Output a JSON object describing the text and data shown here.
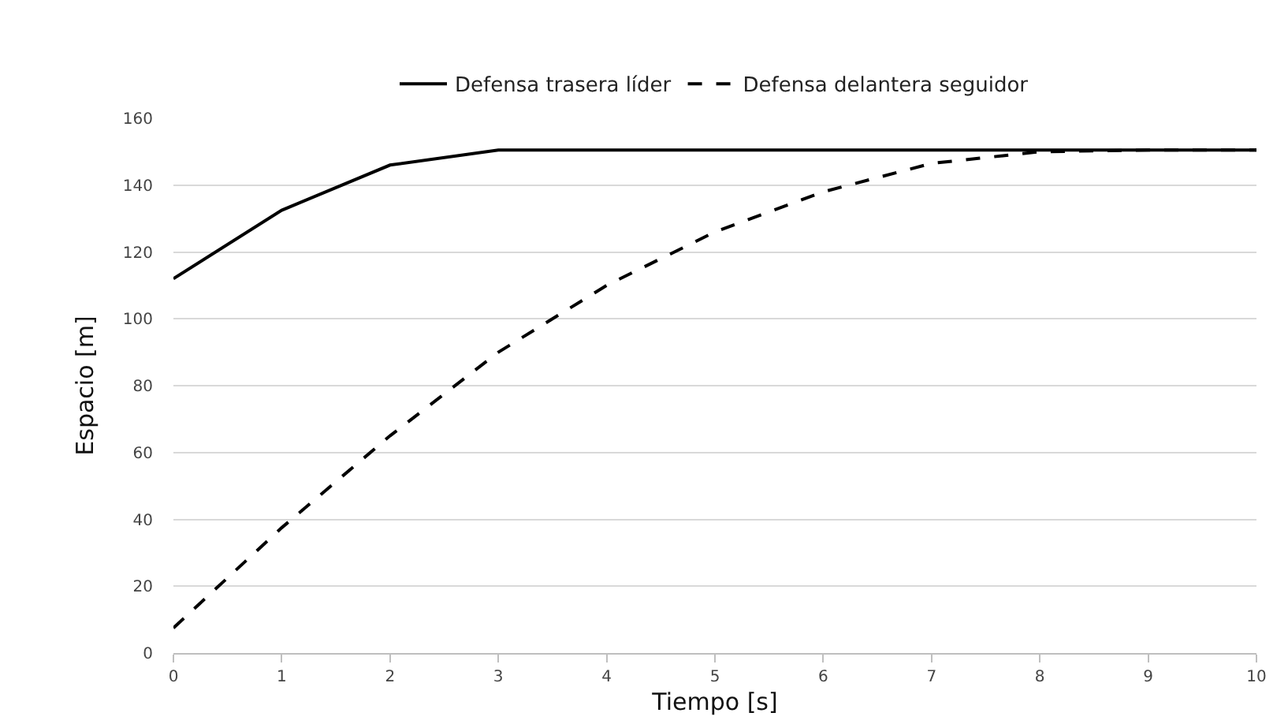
{
  "chart_data": {
    "type": "line",
    "xlabel": "Tiempo [s]",
    "ylabel": "Espacio [m]",
    "categories": [
      "0",
      "1",
      "2",
      "3",
      "4",
      "5",
      "6",
      "7",
      "8",
      "9",
      "10"
    ],
    "series": [
      {
        "name": "Defensa trasera líder",
        "color": "#000000",
        "line_style": "solid",
        "values": [
          112,
          132.5,
          146,
          150.5,
          150.5,
          150.5,
          150.5,
          150.5,
          150.5,
          150.5,
          150.5
        ]
      },
      {
        "name": "Defensa delantera seguidor",
        "color": "#000000",
        "line_style": "dashed",
        "values": [
          7.5,
          37.5,
          65,
          90,
          110,
          126,
          138,
          146.5,
          150,
          150.5,
          150.5
        ]
      }
    ],
    "ylim": [
      0,
      160
    ],
    "yticks": [
      0,
      20,
      40,
      60,
      80,
      100,
      120,
      140,
      160
    ],
    "grid": "y",
    "legend": "top",
    "marker": "none"
  }
}
